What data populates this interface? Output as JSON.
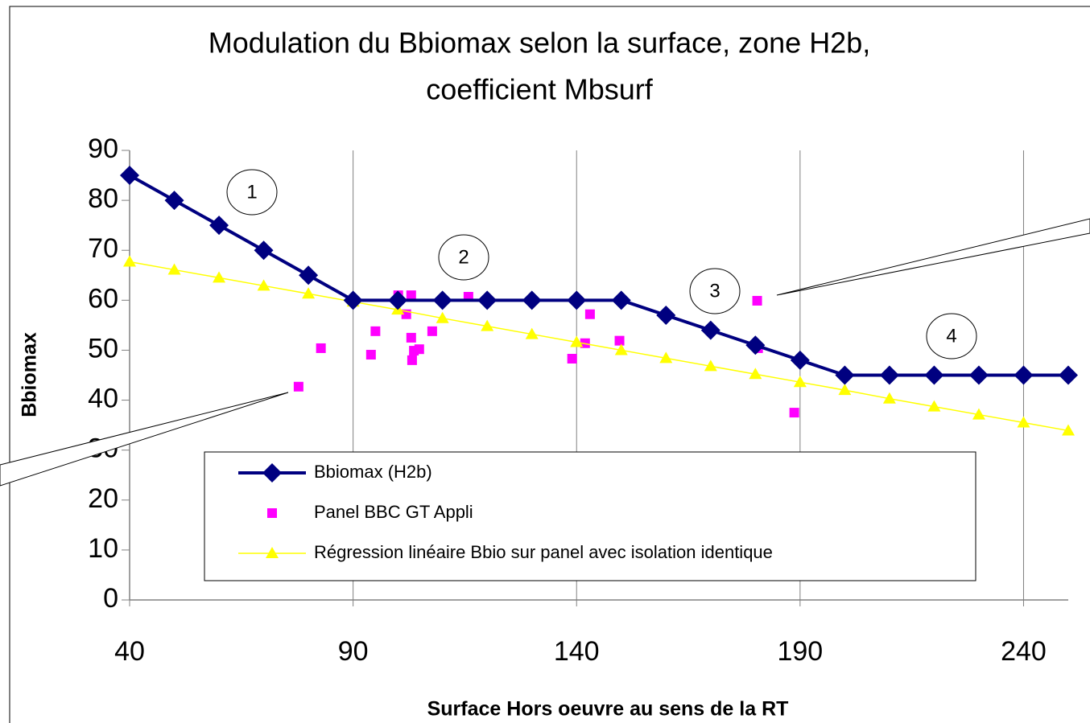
{
  "chart_data": {
    "type": "line",
    "title": [
      "Modulation du Bbiomax selon la surface, zone H2b,",
      "coefficient Mbsurf"
    ],
    "xlabel": "Surface Hors oeuvre au sens de la RT",
    "ylabel": "Bbiomax",
    "xlim": [
      40,
      250
    ],
    "ylim": [
      0,
      90
    ],
    "xticks": [
      40,
      90,
      140,
      190,
      240
    ],
    "yticks": [
      0,
      10,
      20,
      30,
      40,
      50,
      60,
      70,
      80,
      90
    ],
    "grid": "x",
    "series": [
      {
        "name": "Bbiomax (H2b)",
        "color": "#000080",
        "kind": "line",
        "marker": "diamond",
        "x": [
          40,
          50,
          60,
          70,
          80,
          90,
          100,
          110,
          120,
          130,
          140,
          150,
          160,
          170,
          180,
          190,
          200,
          210,
          220,
          230,
          240,
          250
        ],
        "values": [
          85,
          80,
          75,
          70,
          65,
          60,
          60,
          60,
          60,
          60,
          60,
          60,
          57,
          54,
          51,
          48,
          45,
          45,
          45,
          45,
          45,
          45
        ]
      },
      {
        "name": "Panel BBC GT Appli",
        "color": "#ff00ff",
        "kind": "scatter",
        "marker": "square",
        "x": [
          77.8,
          82.8,
          94,
          95,
          100.1,
          101.9,
          103,
          103,
          103.2,
          103.6,
          104.8,
          107.7,
          115.8,
          139,
          141.9,
          143,
          149.6,
          180.4,
          180.6,
          188.7
        ],
        "values": [
          42.7,
          50.4,
          49.1,
          53.8,
          61,
          57.2,
          61,
          52.5,
          48,
          49.9,
          50.2,
          53.8,
          60.7,
          48.3,
          51.4,
          57.2,
          51.9,
          59.9,
          50.4,
          37.5
        ]
      },
      {
        "name": "Régression linéaire Bbio sur panel avec isolation identique",
        "color": "#ffff00",
        "kind": "line",
        "marker": "triangle",
        "x": [
          40,
          50,
          60,
          70,
          80,
          90,
          100,
          110,
          120,
          130,
          140,
          150,
          160,
          170,
          180,
          190,
          200,
          210,
          220,
          230,
          240,
          250
        ],
        "values": [
          67.7,
          66.1,
          64.5,
          62.9,
          61.3,
          59.7,
          58.1,
          56.4,
          54.8,
          53.2,
          51.6,
          50.0,
          48.4,
          46.8,
          45.2,
          43.6,
          42.0,
          40.3,
          38.7,
          37.1,
          35.5,
          33.9
        ]
      }
    ],
    "annotations": [
      "1",
      "2",
      "3",
      "4"
    ]
  }
}
